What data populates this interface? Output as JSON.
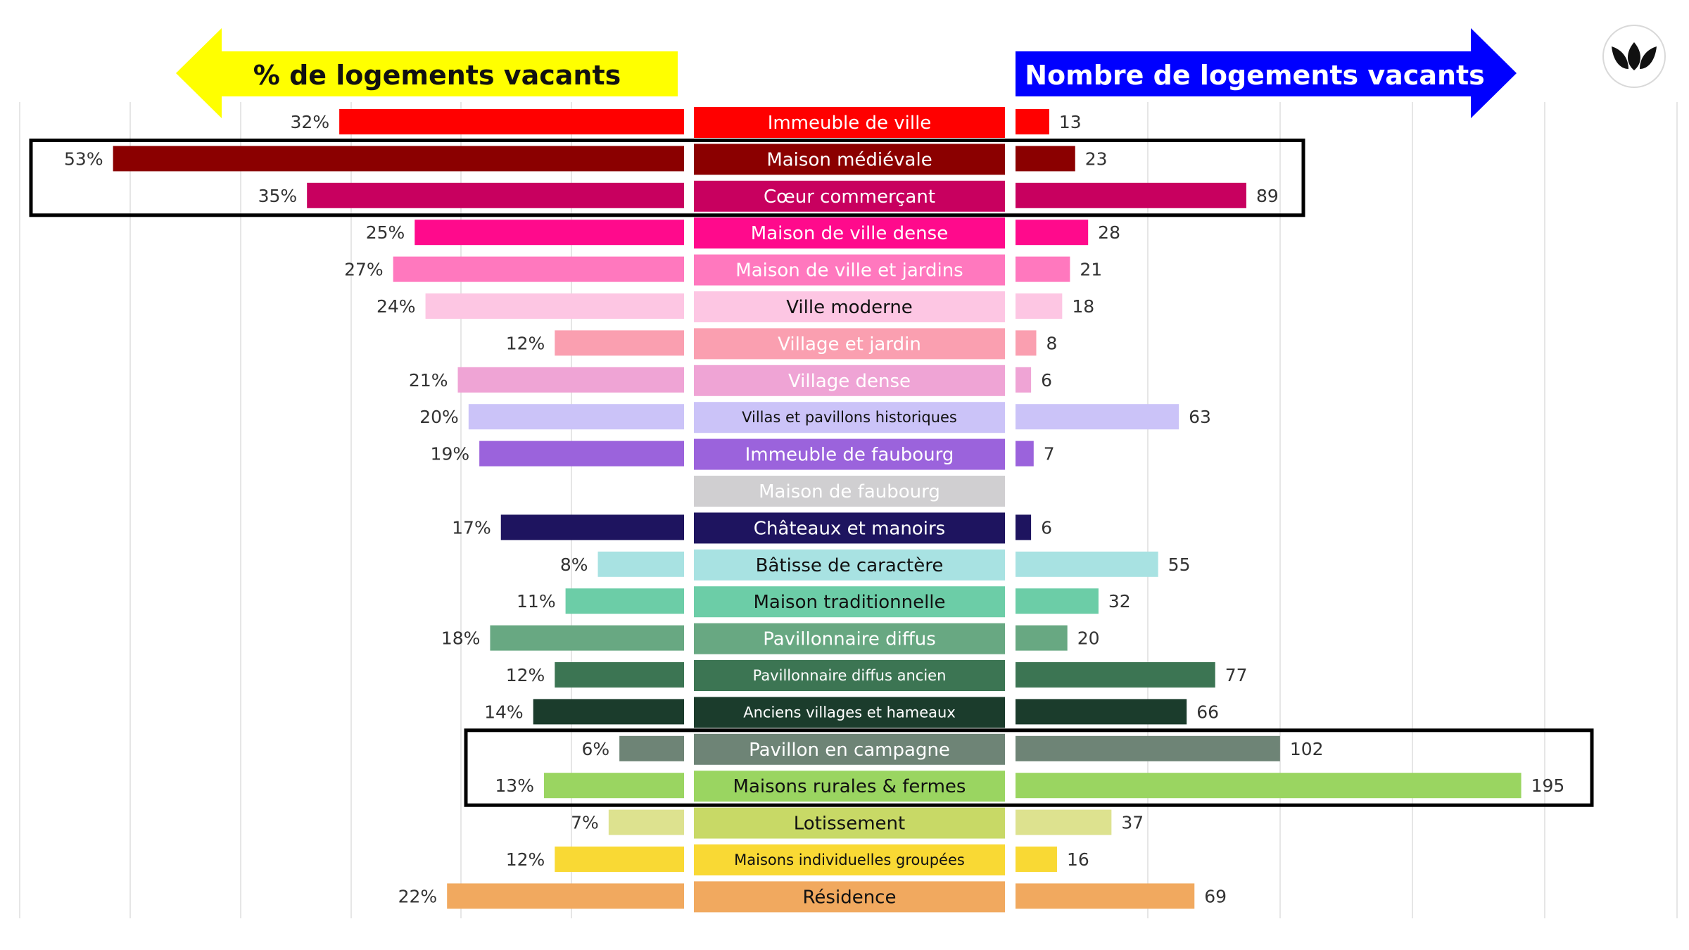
{
  "chart_data": {
    "type": "bar",
    "left_header": "% de logements vacants",
    "right_header": "Nombre de logements vacants",
    "colors": {
      "left_arrow": "#ffff00",
      "right_arrow": "#0000ff",
      "left_header_text": "#111111",
      "right_header_text": "#ffffff"
    },
    "categories": [
      "Immeuble de ville",
      "Maison médiévale",
      "Cœur commerçant",
      "Maison de ville dense",
      "Maison de ville et jardins",
      "Ville moderne",
      "Village et jardin",
      "Village dense",
      "Villas et pavillons historiques",
      "Immeuble de faubourg",
      "Maison de faubourg",
      "Châteaux et manoirs",
      "Bâtisse de caractère",
      "Maison traditionnelle",
      "Pavillonnaire diffus",
      "Pavillonnaire diffus ancien",
      "Anciens villages et hameaux",
      "Pavillon en campagne",
      "Maisons rurales & fermes",
      "Lotissement",
      "Maisons individuelles groupées",
      "Résidence"
    ],
    "series": [
      {
        "name": "% de logements vacants",
        "values": [
          32,
          53,
          35,
          25,
          27,
          24,
          12,
          21,
          20,
          19,
          null,
          17,
          8,
          11,
          18,
          12,
          14,
          6,
          13,
          7,
          12,
          22
        ],
        "labels": [
          "32%",
          "53%",
          "35%",
          "25%",
          "27%",
          "24%",
          "12%",
          "21%",
          "20%",
          "19%",
          "",
          "17%",
          "8%",
          "11%",
          "18%",
          "12%",
          "14%",
          "6%",
          "13%",
          "7%",
          "12%",
          "22%"
        ]
      },
      {
        "name": "Nombre de logements vacants",
        "values": [
          13,
          23,
          89,
          28,
          21,
          18,
          8,
          6,
          63,
          7,
          null,
          6,
          55,
          32,
          20,
          77,
          66,
          102,
          195,
          37,
          16,
          69
        ],
        "labels": [
          "13",
          "23",
          "89",
          "28",
          "21",
          "18",
          "8",
          "6",
          "63",
          "7",
          "",
          "6",
          "55",
          "32",
          "20",
          "77",
          "66",
          "102",
          "195",
          "37",
          "16",
          "69"
        ]
      }
    ],
    "category_colors": [
      "#ff0000",
      "#8b0000",
      "#c8005f",
      "#ff0a8c",
      "#ff78be",
      "#fdc6e3",
      "#fa9fb0",
      "#efa4d5",
      "#cbc3f8",
      "#9b63dc",
      "#d0cfd1",
      "#1e145f",
      "#a8e2e2",
      "#6ccda7",
      "#68a882",
      "#3c7553",
      "#1b3c2c",
      "#6e8476",
      "#9ad561",
      "#dde28f",
      "#f9d934",
      "#f1a95f"
    ],
    "label_text_colors": [
      "#ffffff",
      "#ffffff",
      "#ffffff",
      "#ffffff",
      "#ffffff",
      "#111111",
      "#ffffff",
      "#ffffff",
      "#111111",
      "#ffffff",
      "#ffffff",
      "#ffffff",
      "#111111",
      "#111111",
      "#ffffff",
      "#ffffff",
      "#ffffff",
      "#ffffff",
      "#111111",
      "#111111",
      "#111111",
      "#111111"
    ],
    "center_label_fills": {
      "19": "#c8d966"
    },
    "highlighted_groups": [
      [
        "Maison médiévale",
        "Cœur commerçant"
      ],
      [
        "Pavillon en campagne",
        "Maisons rurales & fermes"
      ]
    ],
    "left_xlim": [
      0,
      55
    ],
    "right_xlim": [
      0,
      200
    ],
    "grid": true,
    "logo": "double-leaf-logo"
  }
}
